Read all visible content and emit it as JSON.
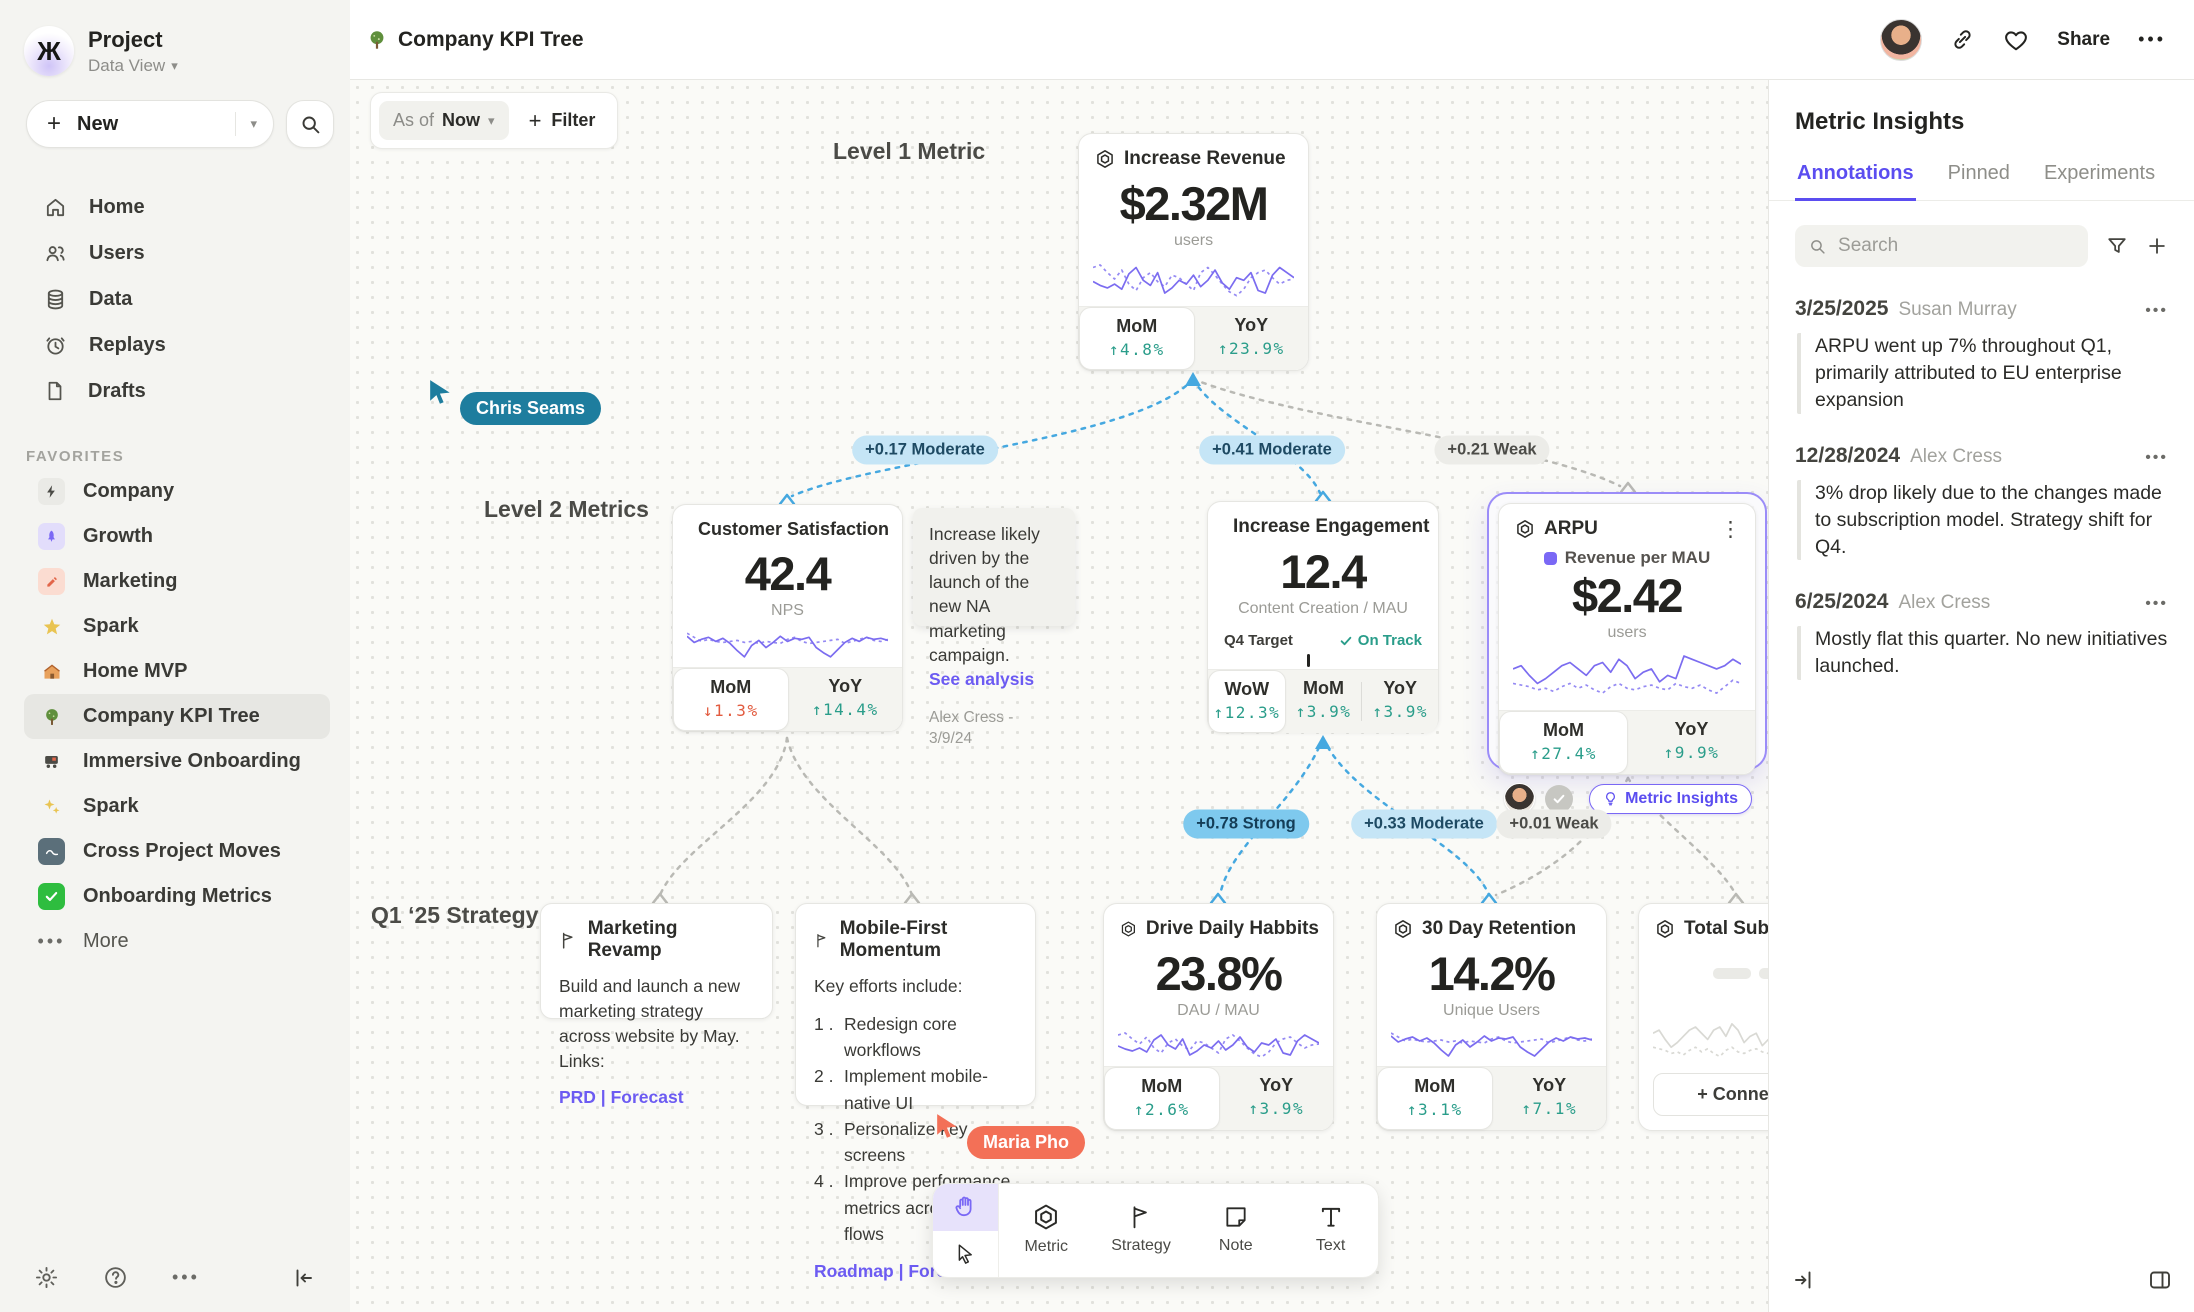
{
  "topbar": {
    "title": "Company KPI Tree",
    "share_label": "Share",
    "more_label": "•••"
  },
  "sidebar": {
    "project_name": "Project",
    "workspace": "Data View",
    "new_label": "New",
    "nav": [
      {
        "label": "Home"
      },
      {
        "label": "Users"
      },
      {
        "label": "Data"
      },
      {
        "label": "Replays"
      },
      {
        "label": "Drafts"
      }
    ],
    "favorites_title": "FAVORITES",
    "favorites": [
      {
        "label": "Company"
      },
      {
        "label": "Growth"
      },
      {
        "label": "Marketing"
      },
      {
        "label": "Spark"
      },
      {
        "label": "Home MVP"
      },
      {
        "label": "Company KPI Tree"
      },
      {
        "label": "Immersive Onboarding"
      },
      {
        "label": "Spark"
      },
      {
        "label": "Cross Project Moves"
      },
      {
        "label": "Onboarding Metrics"
      }
    ],
    "more_label": "More"
  },
  "canvas": {
    "asof_label": "As of",
    "asof_value": "Now",
    "filter_label": "Filter",
    "sections": {
      "level1": "Level 1 Metric",
      "level2": "Level 2 Metrics",
      "strategy": "Q1 ‘25 Strategy"
    },
    "edges": [
      {
        "text": "+0.17 Moderate"
      },
      {
        "text": "+0.41 Moderate"
      },
      {
        "text": "+0.21 Weak"
      },
      {
        "text": "+0.78 Strong"
      },
      {
        "text": "+0.33 Moderate"
      },
      {
        "text": "+0.01 Weak"
      }
    ],
    "cursors": [
      {
        "name": "Chris Seams"
      },
      {
        "name": "Maria Pho"
      }
    ]
  },
  "cards": {
    "revenue": {
      "title": "Increase Revenue",
      "value": "$2.32M",
      "unit": "users",
      "stats": [
        {
          "label": "MoM",
          "value": "↑4.8%"
        },
        {
          "label": "YoY",
          "value": "↑23.9%"
        }
      ]
    },
    "satisfaction": {
      "title": "Customer Satisfaction",
      "value": "42.4",
      "unit": "NPS",
      "stats": [
        {
          "label": "MoM",
          "value": "↓1.3%"
        },
        {
          "label": "YoY",
          "value": "↑14.4%"
        }
      ]
    },
    "engagement": {
      "title": "Increase Engagement",
      "value": "12.4",
      "unit": "Content Creation / MAU",
      "target_label": "Q4 Target",
      "target_status": "On Track",
      "stats": [
        {
          "label": "WoW",
          "value": "↑12.3%"
        },
        {
          "label": "MoM",
          "value": "↑3.9%"
        },
        {
          "label": "YoY",
          "value": "↑3.9%"
        }
      ]
    },
    "arpu": {
      "title": "ARPU",
      "legend": "Revenue per MAU",
      "value": "$2.42",
      "unit": "users",
      "insights_label": "Metric Insights",
      "stats": [
        {
          "label": "MoM",
          "value": "↑27.4%"
        },
        {
          "label": "YoY",
          "value": "↑9.9%"
        }
      ]
    },
    "habits": {
      "title": "Drive Daily Habbits",
      "value": "23.8%",
      "unit": "DAU / MAU",
      "stats": [
        {
          "label": "MoM",
          "value": "↑2.6%"
        },
        {
          "label": "YoY",
          "value": "↑3.9%"
        }
      ]
    },
    "retention": {
      "title": "30 Day Retention",
      "value": "14.2%",
      "unit": "Unique Users",
      "stats": [
        {
          "label": "MoM",
          "value": "↑3.1%"
        },
        {
          "label": "YoY",
          "value": "↑7.1%"
        }
      ]
    },
    "subscriptions": {
      "title": "Total Subscript",
      "connect_label": "+ Connec"
    }
  },
  "strategies": {
    "marketing": {
      "title": "Marketing Revamp",
      "body": "Build and launch a new marketing strategy across website by May. Links:",
      "links": "PRD | Forecast"
    },
    "mobile": {
      "title": "Mobile-First Momentum",
      "intro": "Key efforts include:",
      "items": [
        "Redesign core workflows",
        "Implement mobile-native UI",
        "Personalize key screens",
        "Improve performance metrics across top flows"
      ],
      "links": "Roadmap | Forecast"
    }
  },
  "note": {
    "text": "Increase likely driven by the launch of the new NA marketing campaign.",
    "link_label": "See analysis",
    "byline": "Alex Cress - 3/9/24"
  },
  "toolbar": {
    "tools": [
      {
        "label": "Metric"
      },
      {
        "label": "Strategy"
      },
      {
        "label": "Note"
      },
      {
        "label": "Text"
      }
    ]
  },
  "panel": {
    "title": "Metric Insights",
    "tabs": [
      {
        "label": "Annotations"
      },
      {
        "label": "Pinned"
      },
      {
        "label": "Experiments"
      }
    ],
    "active_tab": "Annotations",
    "search_placeholder": "Search",
    "annotations": [
      {
        "date": "3/25/2025",
        "author": "Susan Murray",
        "text": "ARPU went up 7% throughout Q1, primarily attributed to EU enterprise expansion"
      },
      {
        "date": "12/28/2024",
        "author": "Alex Cress",
        "text": "3% drop likely due to the changes made to subscription model. Strategy shift for Q4."
      },
      {
        "date": "6/25/2024",
        "author": "Alex Cress",
        "text": "Mostly flat this quarter. No new initiatives launched."
      }
    ]
  },
  "colors": {
    "accent": "#6c5bf2",
    "edge_blue": "#45a8e0",
    "edge_gray": "#b9b9b4",
    "up": "#2a9d8a",
    "down": "#e25b3f",
    "cursor_teal": "#1e7d9e",
    "cursor_coral": "#f37057"
  },
  "sparklines": {
    "a": {
      "solid": [
        20,
        23,
        25,
        22,
        26,
        14,
        9,
        19,
        23,
        13,
        29,
        25,
        19,
        22,
        15,
        24,
        19,
        11,
        21,
        26,
        17,
        19,
        13,
        27,
        29,
        15,
        9,
        13,
        17
      ],
      "dotted": [
        9,
        7,
        13,
        18,
        11,
        22,
        27,
        17,
        13,
        20,
        24,
        15,
        17,
        22,
        27,
        13,
        9,
        15,
        22,
        28,
        31,
        26,
        17,
        13,
        11,
        17,
        22,
        19,
        18
      ]
    },
    "b": {
      "solid": [
        10,
        16,
        13,
        11,
        15,
        12,
        17,
        24,
        30,
        19,
        14,
        21,
        16,
        10,
        15,
        12,
        13,
        11,
        21,
        26,
        30,
        23,
        16,
        12,
        15,
        11,
        13,
        12,
        14
      ],
      "dotted": [
        7,
        11,
        15,
        13,
        15,
        16,
        15,
        14,
        16,
        15,
        17,
        15,
        16,
        17,
        13,
        11,
        15,
        17,
        16,
        15,
        14,
        13,
        17,
        15,
        13,
        11,
        14,
        15,
        13
      ]
    },
    "c": {
      "solid": [
        13,
        11,
        17,
        22,
        19,
        15,
        11,
        9,
        13,
        17,
        11,
        9,
        15,
        7,
        11,
        19,
        15,
        13,
        21,
        17,
        19,
        5,
        7,
        9,
        11,
        13,
        11,
        7,
        10
      ],
      "dotted": [
        22,
        23,
        24,
        26,
        25,
        27,
        24,
        22,
        25,
        23,
        26,
        28,
        24,
        22,
        25,
        26,
        24,
        23,
        25,
        26,
        22,
        24,
        25,
        23,
        26,
        28,
        24,
        20,
        22
      ]
    }
  }
}
